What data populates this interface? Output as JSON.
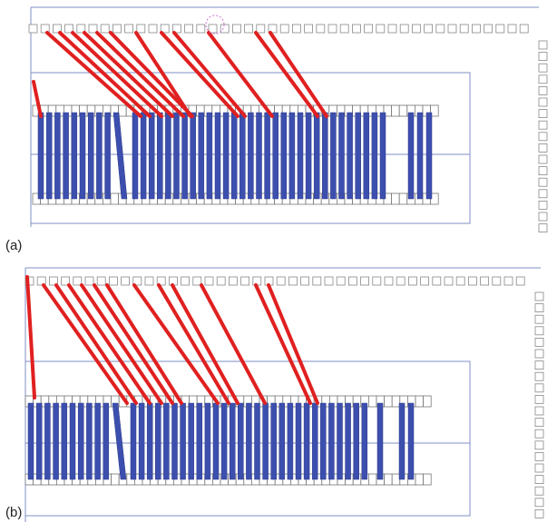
{
  "figure": {
    "panels": [
      {
        "label": "(a)"
      },
      {
        "label": "(b)"
      }
    ]
  },
  "colors": {
    "frame": "#7f8fc4",
    "pad_stroke": "#888888",
    "bar_fill": "#3d4fae",
    "bar_stroke": "#2a3a8a",
    "wire": "#e02020",
    "marker": "#d070d0"
  }
}
